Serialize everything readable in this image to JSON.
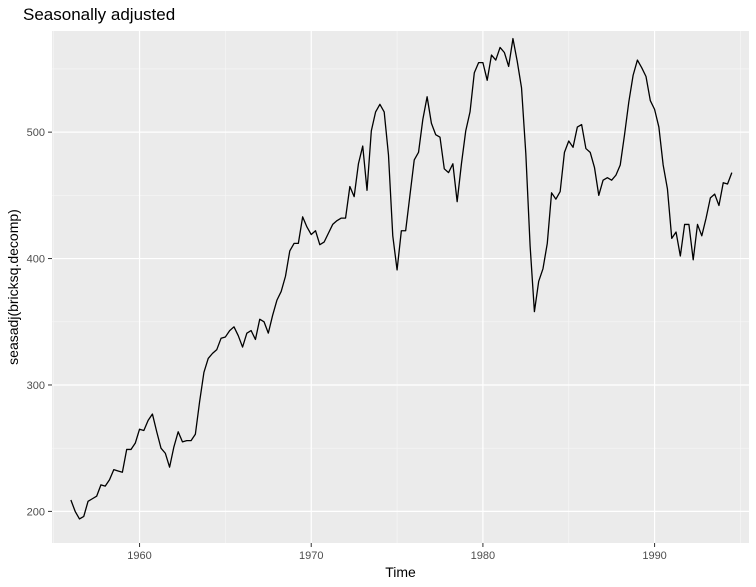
{
  "chart_data": {
    "type": "line",
    "title": "Seasonally adjusted",
    "xlabel": "Time",
    "ylabel": "seasadj(bricksq.decomp)",
    "xlim": [
      1954.9,
      1995.5
    ],
    "ylim": [
      175,
      580
    ],
    "x_ticks": [
      1960,
      1970,
      1980,
      1990
    ],
    "x_tick_labels": [
      "1960",
      "1970",
      "1980",
      "1990"
    ],
    "y_ticks": [
      200,
      300,
      400,
      500
    ],
    "y_tick_labels": [
      "200",
      "300",
      "400",
      "500"
    ],
    "grid": true,
    "series": [
      {
        "x": [
          1956.0,
          1956.25,
          1956.5,
          1956.75,
          1957.0,
          1957.25,
          1957.5,
          1957.75,
          1958.0,
          1958.25,
          1958.5,
          1958.75,
          1959.0,
          1959.25,
          1959.5,
          1959.75,
          1960.0,
          1960.25,
          1960.5,
          1960.75,
          1961.0,
          1961.25,
          1961.5,
          1961.75,
          1962.0,
          1962.25,
          1962.5,
          1962.75,
          1963.0,
          1963.25,
          1963.5,
          1963.75,
          1964.0,
          1964.25,
          1964.5,
          1964.75,
          1965.0,
          1965.25,
          1965.5,
          1965.75,
          1966.0,
          1966.25,
          1966.5,
          1966.75,
          1967.0,
          1967.25,
          1967.5,
          1967.75,
          1968.0,
          1968.25,
          1968.5,
          1968.75,
          1969.0,
          1969.25,
          1969.5,
          1969.75,
          1970.0,
          1970.25,
          1970.5,
          1970.75,
          1971.0,
          1971.25,
          1971.5,
          1971.75,
          1972.0,
          1972.25,
          1972.5,
          1972.75,
          1973.0,
          1973.25,
          1973.5,
          1973.75,
          1974.0,
          1974.25,
          1974.5,
          1974.75,
          1975.0,
          1975.25,
          1975.5,
          1975.75,
          1976.0,
          1976.25,
          1976.5,
          1976.75,
          1977.0,
          1977.25,
          1977.5,
          1977.75,
          1978.0,
          1978.25,
          1978.5,
          1978.75,
          1979.0,
          1979.25,
          1979.5,
          1979.75,
          1980.0,
          1980.25,
          1980.5,
          1980.75,
          1981.0,
          1981.25,
          1981.5,
          1981.75,
          1982.0,
          1982.25,
          1982.5,
          1982.75,
          1983.0,
          1983.25,
          1983.5,
          1983.75,
          1984.0,
          1984.25,
          1984.5,
          1984.75,
          1985.0,
          1985.25,
          1985.5,
          1985.75,
          1986.0,
          1986.25,
          1986.5,
          1986.75,
          1987.0,
          1987.25,
          1987.5,
          1987.75,
          1988.0,
          1988.25,
          1988.5,
          1988.75,
          1989.0,
          1989.25,
          1989.5,
          1989.75,
          1990.0,
          1990.25,
          1990.5,
          1990.75,
          1991.0,
          1991.25,
          1991.5,
          1991.75,
          1992.0,
          1992.25,
          1992.5,
          1992.75,
          1993.0,
          1993.25,
          1993.5,
          1993.75,
          1994.0,
          1994.25,
          1994.5
        ],
        "y": [
          209,
          200,
          194,
          196,
          208,
          210,
          212,
          221,
          220,
          225,
          233,
          232,
          231,
          249,
          249,
          254,
          265,
          264,
          272,
          277,
          263,
          250,
          246,
          235,
          251,
          263,
          255,
          256,
          256,
          261,
          287,
          310,
          321,
          325,
          328,
          337,
          338,
          343,
          346,
          339,
          330,
          341,
          343,
          336,
          352,
          350,
          341,
          355,
          367,
          374,
          386,
          406,
          412,
          412,
          433,
          425,
          419,
          422,
          411,
          413,
          420,
          427,
          430,
          432,
          432,
          457,
          449,
          475,
          489,
          454,
          501,
          516,
          522,
          516,
          482,
          418,
          391,
          422,
          422,
          450,
          478,
          484,
          510,
          528,
          507,
          498,
          496,
          471,
          468,
          475,
          445,
          475,
          501,
          516,
          547,
          555,
          555,
          541,
          561,
          557,
          567,
          563,
          552,
          574,
          556,
          535,
          483,
          410,
          358,
          382,
          392,
          412,
          452,
          447,
          453,
          484,
          493,
          488,
          504,
          506,
          487,
          484,
          472,
          450,
          462,
          464,
          462,
          466,
          474,
          498,
          524,
          545,
          557,
          551,
          544,
          525,
          518,
          504,
          474,
          455,
          416,
          421,
          402,
          427,
          427,
          399,
          427,
          418,
          432,
          448,
          451,
          442,
          460,
          459,
          468
        ]
      }
    ]
  }
}
